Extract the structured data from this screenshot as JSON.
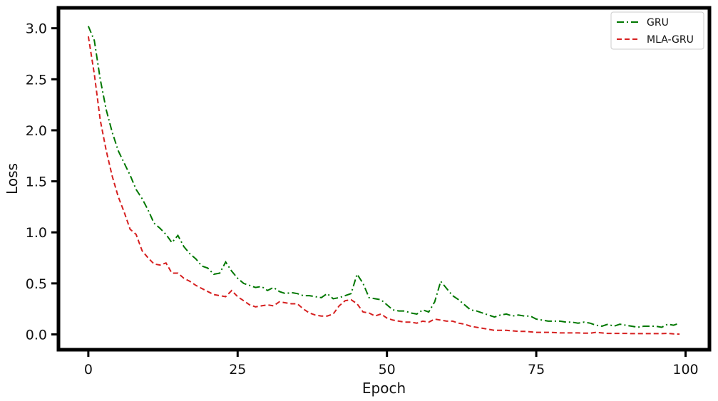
{
  "chart_data": {
    "type": "line",
    "title": "",
    "xlabel": "Epoch",
    "ylabel": "Loss",
    "xlim": [
      -5,
      104
    ],
    "ylim": [
      -0.15,
      3.2
    ],
    "xticks": [
      0,
      25,
      50,
      75,
      100
    ],
    "xtick_labels": [
      "0",
      "25",
      "50",
      "75",
      "100"
    ],
    "yticks": [
      0.0,
      0.5,
      1.0,
      1.5,
      2.0,
      2.5,
      3.0
    ],
    "ytick_labels": [
      "0.0",
      "0.5",
      "1.0",
      "1.5",
      "2.0",
      "2.5",
      "3.0"
    ],
    "grid": false,
    "legend_position": "top-right",
    "series": [
      {
        "name": "GRU",
        "color": "#007700",
        "linestyle": "dash-dot",
        "x": [
          0,
          1,
          2,
          3,
          4,
          5,
          6,
          7,
          8,
          9,
          10,
          11,
          12,
          13,
          14,
          15,
          16,
          17,
          18,
          19,
          20,
          21,
          22,
          23,
          24,
          25,
          26,
          27,
          28,
          29,
          30,
          31,
          32,
          33,
          34,
          35,
          36,
          37,
          38,
          39,
          40,
          41,
          42,
          43,
          44,
          45,
          46,
          47,
          48,
          49,
          50,
          51,
          52,
          53,
          54,
          55,
          56,
          57,
          58,
          59,
          60,
          61,
          62,
          63,
          64,
          65,
          66,
          67,
          68,
          69,
          70,
          71,
          72,
          73,
          74,
          75,
          76,
          77,
          78,
          79,
          80,
          81,
          82,
          83,
          84,
          85,
          86,
          87,
          88,
          89,
          90,
          91,
          92,
          93,
          94,
          95,
          96,
          97,
          98,
          99
        ],
        "y": [
          3.02,
          2.88,
          2.5,
          2.2,
          1.98,
          1.8,
          1.68,
          1.56,
          1.42,
          1.33,
          1.22,
          1.09,
          1.04,
          0.98,
          0.9,
          0.97,
          0.86,
          0.79,
          0.74,
          0.67,
          0.65,
          0.59,
          0.6,
          0.71,
          0.62,
          0.55,
          0.5,
          0.48,
          0.46,
          0.47,
          0.43,
          0.46,
          0.42,
          0.4,
          0.41,
          0.4,
          0.38,
          0.38,
          0.37,
          0.36,
          0.4,
          0.35,
          0.36,
          0.38,
          0.4,
          0.59,
          0.5,
          0.36,
          0.35,
          0.34,
          0.29,
          0.24,
          0.23,
          0.23,
          0.21,
          0.2,
          0.24,
          0.22,
          0.32,
          0.52,
          0.45,
          0.38,
          0.34,
          0.29,
          0.24,
          0.23,
          0.21,
          0.19,
          0.17,
          0.19,
          0.2,
          0.18,
          0.19,
          0.18,
          0.18,
          0.15,
          0.14,
          0.13,
          0.13,
          0.13,
          0.12,
          0.12,
          0.11,
          0.12,
          0.11,
          0.09,
          0.08,
          0.1,
          0.08,
          0.1,
          0.09,
          0.08,
          0.07,
          0.08,
          0.08,
          0.08,
          0.07,
          0.1,
          0.09,
          0.11
        ]
      },
      {
        "name": "MLA-GRU",
        "color": "#d62020",
        "linestyle": "dashed",
        "x": [
          0,
          1,
          2,
          3,
          4,
          5,
          6,
          7,
          8,
          9,
          10,
          11,
          12,
          13,
          14,
          15,
          16,
          17,
          18,
          19,
          20,
          21,
          22,
          23,
          24,
          25,
          26,
          27,
          28,
          29,
          30,
          31,
          32,
          33,
          34,
          35,
          36,
          37,
          38,
          39,
          40,
          41,
          42,
          43,
          44,
          45,
          46,
          47,
          48,
          49,
          50,
          51,
          52,
          53,
          54,
          55,
          56,
          57,
          58,
          59,
          60,
          61,
          62,
          63,
          64,
          65,
          66,
          67,
          68,
          69,
          70,
          71,
          72,
          73,
          74,
          75,
          76,
          77,
          78,
          79,
          80,
          81,
          82,
          83,
          84,
          85,
          86,
          87,
          88,
          89,
          90,
          91,
          92,
          93,
          94,
          95,
          96,
          97,
          98,
          99
        ],
        "y": [
          2.92,
          2.55,
          2.1,
          1.8,
          1.55,
          1.35,
          1.2,
          1.03,
          0.98,
          0.82,
          0.75,
          0.69,
          0.68,
          0.7,
          0.6,
          0.6,
          0.55,
          0.52,
          0.48,
          0.45,
          0.42,
          0.39,
          0.38,
          0.37,
          0.43,
          0.37,
          0.33,
          0.29,
          0.27,
          0.28,
          0.29,
          0.28,
          0.32,
          0.31,
          0.3,
          0.3,
          0.25,
          0.21,
          0.19,
          0.18,
          0.18,
          0.2,
          0.28,
          0.33,
          0.34,
          0.3,
          0.22,
          0.21,
          0.18,
          0.2,
          0.16,
          0.14,
          0.13,
          0.12,
          0.12,
          0.11,
          0.13,
          0.12,
          0.15,
          0.14,
          0.13,
          0.13,
          0.11,
          0.1,
          0.08,
          0.07,
          0.06,
          0.05,
          0.04,
          0.04,
          0.04,
          0.035,
          0.03,
          0.03,
          0.025,
          0.02,
          0.02,
          0.02,
          0.018,
          0.015,
          0.015,
          0.015,
          0.015,
          0.012,
          0.012,
          0.02,
          0.015,
          0.01,
          0.01,
          0.01,
          0.01,
          0.008,
          0.008,
          0.008,
          0.008,
          0.008,
          0.008,
          0.01,
          0.005,
          0.003
        ]
      }
    ]
  }
}
